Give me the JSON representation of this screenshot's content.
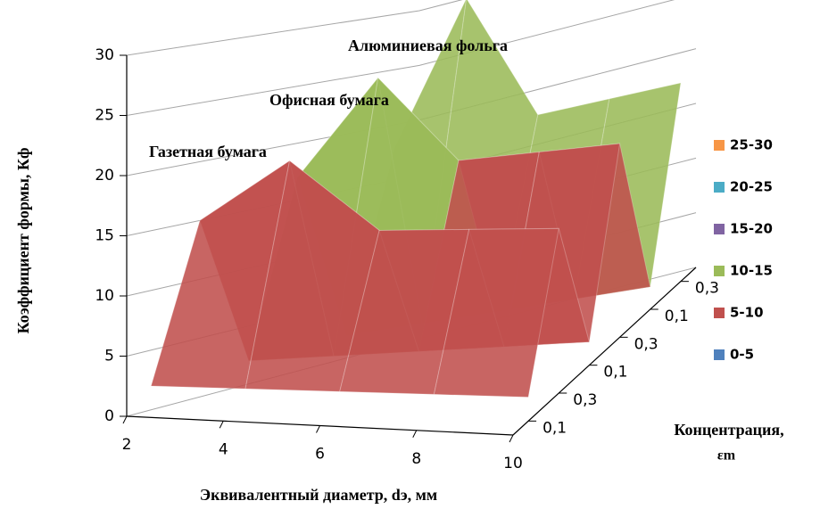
{
  "chart_data": {
    "type": "surface",
    "x_label": "Эквивалентный диаметр, dэ, мм",
    "y_label": "Коэффициент формы, Кф",
    "depth_label": [
      "Концентрация,",
      "εm"
    ],
    "x": [
      2,
      4,
      6,
      8,
      10
    ],
    "depth": [
      "0,1",
      "0,3",
      "0,1",
      "0,3",
      "0,1",
      "0,3"
    ],
    "series": [
      {
        "values": [
          2,
          2,
          2,
          2,
          2
        ]
      },
      {
        "values": [
          15,
          20,
          14,
          14,
          14
        ]
      },
      {
        "values": [
          2,
          2,
          2,
          2,
          2
        ]
      },
      {
        "values": [
          17,
          25,
          17,
          17,
          17
        ]
      },
      {
        "values": [
          2,
          2,
          2,
          2,
          2
        ]
      },
      {
        "values": [
          18,
          30,
          18,
          18,
          18
        ]
      }
    ],
    "zlim": [
      0,
      30
    ],
    "zticks": [
      0,
      5,
      10,
      15,
      20,
      25,
      30
    ],
    "bands": [
      {
        "name": "0-5",
        "color": "#4f81bd"
      },
      {
        "name": "5-10",
        "color": "#c0504d"
      },
      {
        "name": "10-15",
        "color": "#9bbb59"
      },
      {
        "name": "15-20",
        "color": "#8064a2"
      },
      {
        "name": "20-25",
        "color": "#4bacc6"
      },
      {
        "name": "25-30",
        "color": "#f79646"
      }
    ],
    "annotations": [
      "Газетная бумага",
      "Офисная бумага",
      "Алюминиевая фольга"
    ],
    "grid": true
  }
}
